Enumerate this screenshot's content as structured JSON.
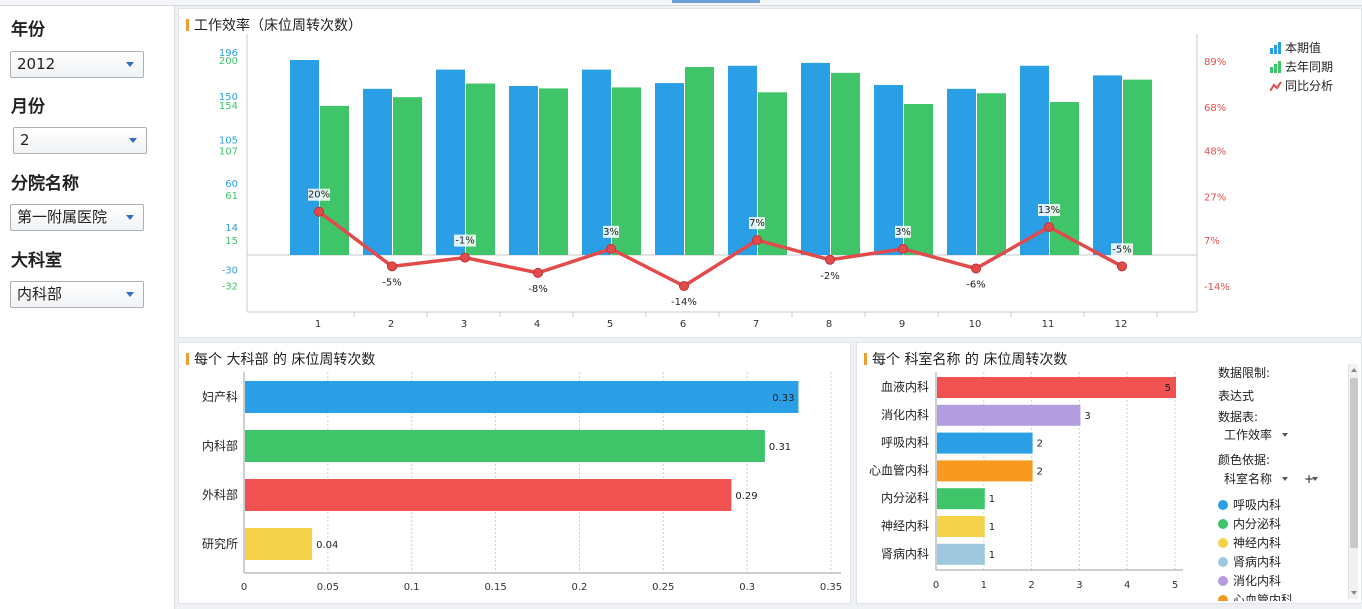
{
  "sidebar": {
    "year_label": "年份",
    "year_value": "2012",
    "month_label": "月份",
    "month_value": "2",
    "branch_label": "分院名称",
    "branch_value": "第一附属医院",
    "dept_label": "大科室",
    "dept_value": "内科部"
  },
  "top_chart": {
    "title": "工作效率（床位周转次数）",
    "legend": [
      {
        "label": "本期值",
        "icon": "bar-chart-icon",
        "color": "#2a9fe6"
      },
      {
        "label": "去年同期",
        "icon": "bar-chart-icon",
        "color": "#3fc46a"
      },
      {
        "label": "同比分析",
        "icon": "line-chart-icon",
        "color": "#e24b4b"
      }
    ],
    "left_axis_blue": [
      "196",
      "150",
      "105",
      "60",
      "14",
      "-30"
    ],
    "left_axis_green": [
      "200",
      "154",
      "107",
      "61",
      "15",
      "-32"
    ],
    "right_axis": [
      "89%",
      "68%",
      "48%",
      "27%",
      "7%",
      "-14%"
    ]
  },
  "chart_data": [
    {
      "type": "bar",
      "title": "工作效率（床位周转次数）",
      "categories": [
        "1",
        "2",
        "3",
        "4",
        "5",
        "6",
        "7",
        "8",
        "9",
        "10",
        "11",
        "12"
      ],
      "series": [
        {
          "name": "本期值",
          "values": [
            196,
            166,
            186,
            169,
            186,
            172,
            190,
            193,
            170,
            166,
            190,
            180
          ],
          "color": "#2a9fe6",
          "axis": "left"
        },
        {
          "name": "去年同期",
          "values": [
            160,
            169,
            183,
            178,
            179,
            200,
            174,
            194,
            162,
            173,
            164,
            187
          ],
          "color": "#3fc46a",
          "axis": "left"
        },
        {
          "name": "同比分析",
          "type": "line",
          "values": [
            20,
            -5,
            -1,
            -8,
            3,
            -14,
            7,
            -2,
            3,
            -6,
            13,
            -5
          ],
          "labels": [
            "20%",
            "-5%",
            "-1%",
            "-8%",
            "3%",
            "-14%",
            "7%",
            "-2%",
            "3%",
            "-6%",
            "13%",
            "-5%"
          ],
          "color": "#e24b4b",
          "axis": "right"
        }
      ],
      "y_left_range": [
        -32,
        200
      ],
      "y_right_range": [
        -14,
        89
      ],
      "grid": false
    },
    {
      "type": "bar",
      "orientation": "horizontal",
      "title": "每个 大科部 的 床位周转次数",
      "categories": [
        "妇产科",
        "内科部",
        "外科部",
        "研究所"
      ],
      "values": [
        0.33,
        0.31,
        0.29,
        0.04
      ],
      "value_labels": [
        "0.33",
        "0.31",
        "0.29",
        "0.04"
      ],
      "colors": [
        "#2a9fe6",
        "#3fc46a",
        "#f05252",
        "#f4d34a"
      ],
      "x_ticks": [
        "0",
        "0.05",
        "0.1",
        "0.15",
        "0.2",
        "0.25",
        "0.3",
        "0.35"
      ],
      "xlim": [
        0,
        0.35
      ],
      "grid": true
    },
    {
      "type": "bar",
      "orientation": "horizontal",
      "title": "每个 科室名称 的 床位周转次数",
      "categories": [
        "血液内科",
        "消化内科",
        "呼吸内科",
        "心血管内科",
        "内分泌科",
        "神经内科",
        "肾病内科"
      ],
      "values": [
        5,
        3,
        2,
        2,
        1,
        1,
        1
      ],
      "value_labels": [
        "5",
        "3",
        "2",
        "2",
        "1",
        "1",
        "1"
      ],
      "colors": [
        "#f05252",
        "#b39ddf",
        "#2a9fe6",
        "#f79a1f",
        "#3fc46a",
        "#f4d34a",
        "#9fc7de"
      ],
      "x_ticks": [
        "0",
        "1",
        "2",
        "3",
        "4",
        "5"
      ],
      "xlim": [
        0,
        5
      ],
      "grid": true
    }
  ],
  "bottom_left": {
    "title": "每个 大科部 的 床位周转次数"
  },
  "bottom_right": {
    "title": "每个 科室名称 的 床位周转次数",
    "filter": {
      "data_limit_label": "数据限制:",
      "expression_label": "表达式",
      "data_table_label": "数据表:",
      "data_table_value": "工作效率",
      "color_by_label": "颜色依据:",
      "color_by_value": "科室名称",
      "plus_label": "+",
      "color_legend": [
        {
          "label": "呼吸内科",
          "color": "#2a9fe6"
        },
        {
          "label": "内分泌科",
          "color": "#3fc46a"
        },
        {
          "label": "神经内科",
          "color": "#f4d34a"
        },
        {
          "label": "肾病内科",
          "color": "#9fc7de"
        },
        {
          "label": "消化内科",
          "color": "#b39ddf"
        },
        {
          "label": "心血管内科",
          "color": "#f79a1f"
        }
      ]
    }
  }
}
